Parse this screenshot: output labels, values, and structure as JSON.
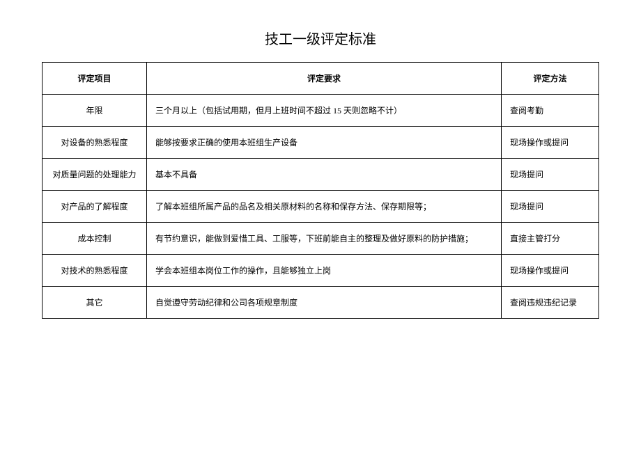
{
  "title": "技工一级评定标准",
  "table": {
    "headers": {
      "item": "评定项目",
      "requirement": "评定要求",
      "method": "评定方法"
    },
    "rows": [
      {
        "item": "年限",
        "requirement": "三个月以上（包括试用期，但月上班时间不超过 15 天则忽略不计）",
        "method": "查阅考勤"
      },
      {
        "item": "对设备的熟悉程度",
        "requirement": "能够按要求正确的使用本班组生产设备",
        "method": "现场操作或提问"
      },
      {
        "item": "对质量问题的处理能力",
        "requirement": "基本不具备",
        "method": "现场提问"
      },
      {
        "item": "对产品的了解程度",
        "requirement": "了解本班组所属产品的品名及相关原材料的名称和保存方法、保存期限等；",
        "method": "现场提问"
      },
      {
        "item": "成本控制",
        "requirement": "有节约意识，能做到爱惜工具、工服等，下班前能自主的整理及做好原料的防护措施；",
        "method": "直接主管打分"
      },
      {
        "item": "对技术的熟悉程度",
        "requirement": "学会本班组本岗位工作的操作，且能够独立上岗",
        "method": "现场操作或提问"
      },
      {
        "item": "其它",
        "requirement": "自觉遵守劳动纪律和公司各项规章制度",
        "method": "查阅违规违纪记录"
      }
    ]
  },
  "style": {
    "background_color": "#ffffff",
    "border_color": "#000000",
    "text_color": "#000000",
    "title_fontsize": 20,
    "header_fontsize": 12,
    "body_fontsize": 12,
    "col_widths": {
      "item": 150,
      "method": 140
    }
  }
}
